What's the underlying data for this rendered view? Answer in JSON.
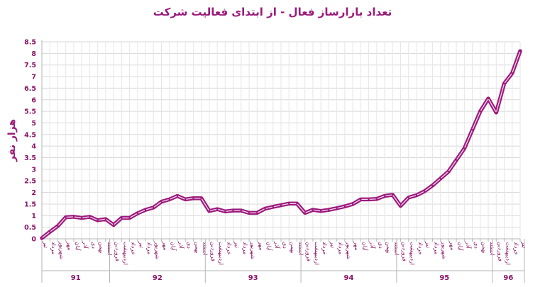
{
  "chart_data": {
    "type": "line",
    "title": "تعداد بازارساز فعال - از ابتدای فعالیت شرکت",
    "ylabel": "هزار نفر",
    "xlabel": "",
    "ylim": [
      0,
      8.5
    ],
    "yticks": [
      "0",
      "0.5",
      "1",
      "1.5",
      "2",
      "2.5",
      "3",
      "3.5",
      "4",
      "4.5",
      "5",
      "5.5",
      "6",
      "6.5",
      "7",
      "7.5",
      "8",
      "8.5"
    ],
    "grid": true,
    "legend": "none",
    "colors": {
      "line": "#9b1a7b",
      "grid": "#d8d8d8",
      "text": "#8a1466"
    },
    "categories": [
      "تیر",
      "مرداد",
      "شهریور",
      "مهر",
      "آبان",
      "آذر",
      "دی",
      "بهمن",
      "اسفند",
      "فروردین",
      "اردیبهشت",
      "خرداد",
      "تیر",
      "مرداد",
      "شهریور",
      "مهر",
      "آبان",
      "آذر",
      "دی",
      "بهمن",
      "اسفند",
      "فروردین",
      "اردیبهشت",
      "خرداد",
      "تیر",
      "مرداد",
      "شهریور",
      "مهر",
      "آبان",
      "آذر",
      "دی",
      "بهمن",
      "اسفند",
      "فروردین",
      "اردیبهشت",
      "خرداد",
      "تیر",
      "مرداد",
      "شهریور",
      "مهر",
      "آبان",
      "آذر",
      "دی",
      "بهمن",
      "اسفند",
      "فروردین",
      "اردیبهشت",
      "خرداد",
      "تیر",
      "مرداد",
      "شهریور",
      "مهر",
      "آبان",
      "آذر",
      "دی",
      "بهمن",
      "اسفند",
      "فروردین",
      "اردیبهشت",
      "خرداد",
      "تیر"
    ],
    "groups": [
      {
        "label": "91",
        "count": 9
      },
      {
        "label": "92",
        "count": 12
      },
      {
        "label": "93",
        "count": 12
      },
      {
        "label": "94",
        "count": 12
      },
      {
        "label": "95",
        "count": 12
      },
      {
        "label": "96",
        "count": 4
      }
    ],
    "values": [
      0.03,
      0.3,
      0.55,
      0.93,
      0.95,
      0.9,
      0.95,
      0.8,
      0.85,
      0.6,
      0.9,
      0.9,
      1.1,
      1.25,
      1.35,
      1.6,
      1.7,
      1.85,
      1.7,
      1.75,
      1.75,
      1.2,
      1.28,
      1.18,
      1.22,
      1.22,
      1.12,
      1.12,
      1.3,
      1.38,
      1.45,
      1.52,
      1.52,
      1.12,
      1.25,
      1.2,
      1.25,
      1.32,
      1.4,
      1.5,
      1.7,
      1.7,
      1.72,
      1.85,
      1.9,
      1.42,
      1.78,
      1.88,
      2.05,
      2.3,
      2.6,
      2.9,
      3.4,
      3.9,
      4.7,
      5.5,
      6.05,
      5.45,
      6.7,
      7.15,
      8.1
    ]
  }
}
